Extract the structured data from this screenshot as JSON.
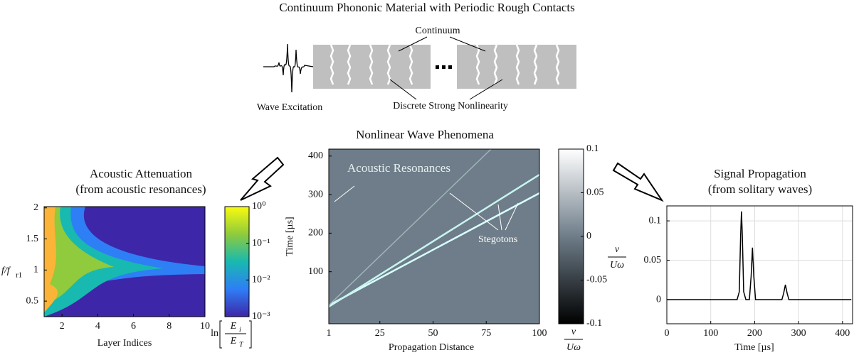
{
  "title": "Continuum Phononic Material with Periodic Rough Contacts",
  "diagram": {
    "continuum": "Continuum",
    "excitation": "Wave Excitation",
    "nonlinearity": "Discrete Strong Nonlinearity"
  },
  "attenuation": {
    "title": [
      "Acoustic Attenuation",
      "(from acoustic resonances)"
    ],
    "xlabel": "Layer Indices",
    "ylabel": "f/f",
    "ylabel_sub": "r1",
    "xlim": [
      1,
      10
    ],
    "xticks": [
      2,
      4,
      6,
      8,
      10
    ],
    "ylim": [
      0.25,
      2.02
    ],
    "yticks": [
      0.5,
      1,
      1.5,
      2
    ],
    "colorbar": {
      "log": true,
      "lim": [
        0.001,
        1
      ],
      "ticks": [
        {
          "value": 1,
          "label": "10⁰"
        },
        {
          "value": 0.1,
          "label": "10⁻¹"
        },
        {
          "value": 0.01,
          "label": "10⁻²"
        },
        {
          "value": 0.001,
          "label": "10⁻³"
        }
      ],
      "label": [
        "ln",
        "E",
        "i",
        "E",
        "T"
      ]
    }
  },
  "phenomena": {
    "title": "Nonlinear Wave Phenomena",
    "annotations": [
      "Acoustic Resonances",
      "Stegotons"
    ],
    "xlabel": "Propagation Distance",
    "ylabel": "Time [µs]",
    "xlim": [
      1,
      100
    ],
    "xticks": [
      1,
      25,
      50,
      75,
      100
    ],
    "ylim": [
      -35,
      418
    ],
    "yticks": [
      100,
      200,
      300,
      400
    ],
    "colorbar": {
      "lim": [
        -0.1,
        0.1
      ],
      "ticks": [
        0.1,
        0.05,
        0,
        -0.05,
        -0.1
      ],
      "label": [
        "v",
        "Uω"
      ]
    }
  },
  "propagation": {
    "title": [
      "Signal Propagation",
      "(from solitary waves)"
    ],
    "xlabel": "Time [µs]",
    "xlim": [
      0,
      423
    ],
    "xticks": [
      0,
      100,
      200,
      300,
      400
    ],
    "ylim": [
      -0.0306,
      0.119
    ],
    "yticks": [
      0,
      0.05,
      0.1
    ],
    "grid": true,
    "color": "#000000",
    "x": [
      0,
      160,
      165,
      168,
      170,
      172,
      175,
      180,
      188,
      192,
      195,
      198,
      202,
      262,
      266,
      270,
      274,
      278,
      420
    ],
    "values": [
      0,
      0,
      0.01,
      0.08,
      0.112,
      0.08,
      0.01,
      0,
      0,
      0.03,
      0.066,
      0.03,
      0,
      0,
      0.008,
      0.019,
      0.008,
      0,
      0
    ]
  }
}
